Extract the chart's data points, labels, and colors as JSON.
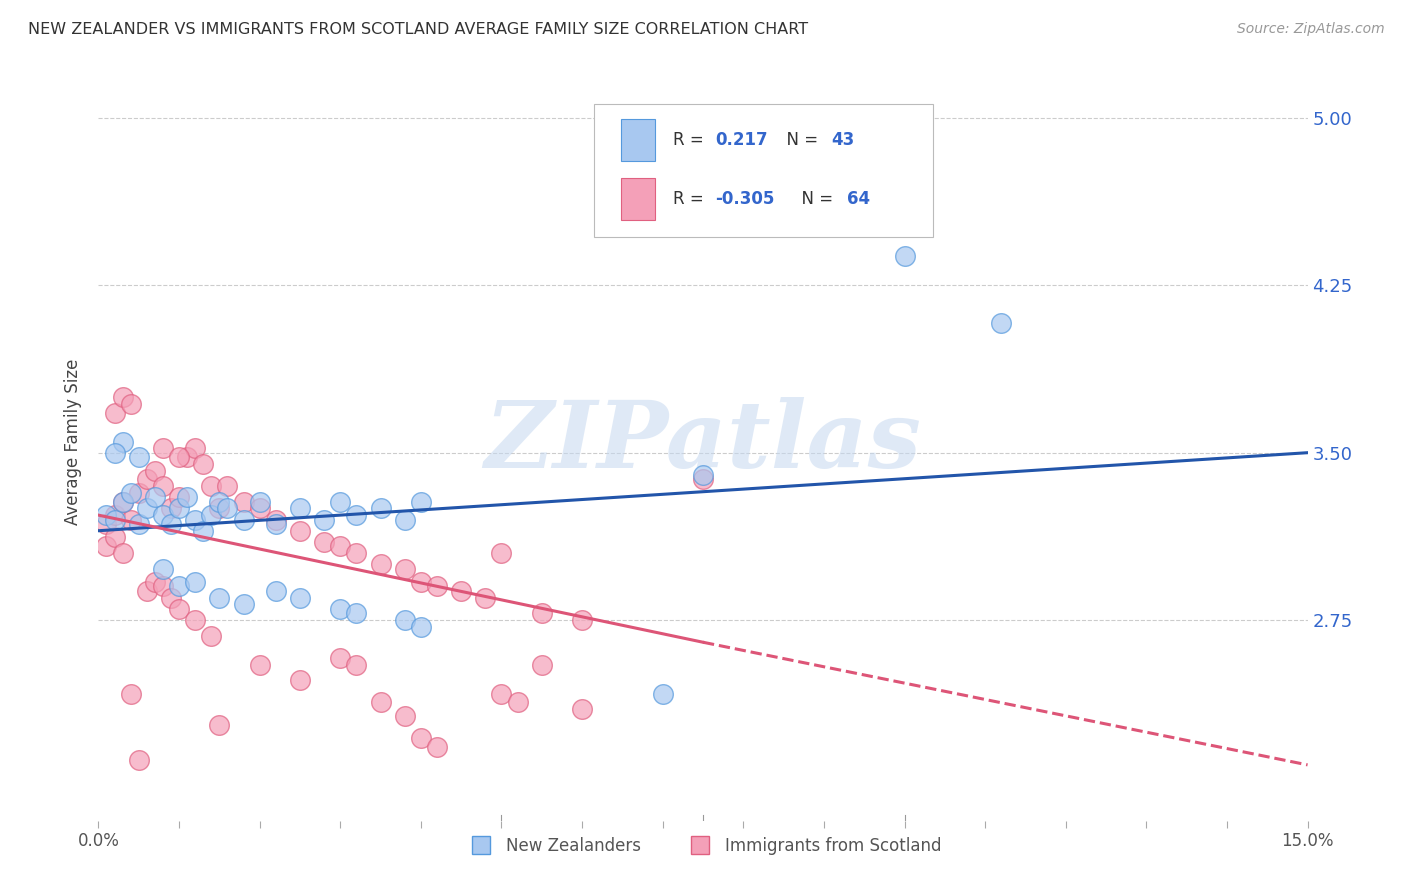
{
  "title": "NEW ZEALANDER VS IMMIGRANTS FROM SCOTLAND AVERAGE FAMILY SIZE CORRELATION CHART",
  "source": "Source: ZipAtlas.com",
  "ylabel": "Average Family Size",
  "yticks": [
    2.75,
    3.5,
    4.25,
    5.0
  ],
  "xlim": [
    0.0,
    0.15
  ],
  "ylim": [
    1.85,
    5.25
  ],
  "legend_label_blue": "New Zealanders",
  "legend_label_pink": "Immigrants from Scotland",
  "blue_color": "#A8C8F0",
  "pink_color": "#F4A0B8",
  "blue_edge_color": "#5599DD",
  "pink_edge_color": "#E06080",
  "blue_line_color": "#2255AA",
  "pink_line_color": "#DD5577",
  "watermark_text": "ZIPatlas",
  "blue_scatter": [
    [
      0.001,
      3.22
    ],
    [
      0.002,
      3.2
    ],
    [
      0.003,
      3.28
    ],
    [
      0.004,
      3.32
    ],
    [
      0.005,
      3.18
    ],
    [
      0.006,
      3.25
    ],
    [
      0.007,
      3.3
    ],
    [
      0.008,
      3.22
    ],
    [
      0.009,
      3.18
    ],
    [
      0.01,
      3.25
    ],
    [
      0.011,
      3.3
    ],
    [
      0.012,
      3.2
    ],
    [
      0.013,
      3.15
    ],
    [
      0.014,
      3.22
    ],
    [
      0.015,
      3.28
    ],
    [
      0.016,
      3.25
    ],
    [
      0.018,
      3.2
    ],
    [
      0.02,
      3.28
    ],
    [
      0.022,
      3.18
    ],
    [
      0.025,
      3.25
    ],
    [
      0.028,
      3.2
    ],
    [
      0.03,
      3.28
    ],
    [
      0.032,
      3.22
    ],
    [
      0.035,
      3.25
    ],
    [
      0.038,
      3.2
    ],
    [
      0.04,
      3.28
    ],
    [
      0.003,
      3.55
    ],
    [
      0.005,
      3.48
    ],
    [
      0.008,
      2.98
    ],
    [
      0.01,
      2.9
    ],
    [
      0.012,
      2.92
    ],
    [
      0.015,
      2.85
    ],
    [
      0.018,
      2.82
    ],
    [
      0.022,
      2.88
    ],
    [
      0.025,
      2.85
    ],
    [
      0.03,
      2.8
    ],
    [
      0.032,
      2.78
    ],
    [
      0.038,
      2.75
    ],
    [
      0.04,
      2.72
    ],
    [
      0.1,
      4.38
    ],
    [
      0.112,
      4.08
    ],
    [
      0.07,
      2.42
    ],
    [
      0.075,
      3.4
    ],
    [
      0.002,
      3.5
    ]
  ],
  "pink_scatter": [
    [
      0.001,
      3.18
    ],
    [
      0.002,
      3.22
    ],
    [
      0.003,
      3.28
    ],
    [
      0.004,
      3.2
    ],
    [
      0.005,
      3.32
    ],
    [
      0.006,
      3.38
    ],
    [
      0.007,
      3.42
    ],
    [
      0.008,
      3.35
    ],
    [
      0.009,
      3.25
    ],
    [
      0.01,
      3.3
    ],
    [
      0.011,
      3.48
    ],
    [
      0.012,
      3.52
    ],
    [
      0.013,
      3.45
    ],
    [
      0.014,
      3.35
    ],
    [
      0.015,
      3.25
    ],
    [
      0.002,
      3.68
    ],
    [
      0.003,
      3.75
    ],
    [
      0.004,
      3.72
    ],
    [
      0.016,
      3.35
    ],
    [
      0.018,
      3.28
    ],
    [
      0.02,
      3.25
    ],
    [
      0.022,
      3.2
    ],
    [
      0.025,
      3.15
    ],
    [
      0.028,
      3.1
    ],
    [
      0.03,
      3.08
    ],
    [
      0.032,
      3.05
    ],
    [
      0.035,
      3.0
    ],
    [
      0.038,
      2.98
    ],
    [
      0.04,
      2.92
    ],
    [
      0.042,
      2.9
    ],
    [
      0.045,
      2.88
    ],
    [
      0.048,
      2.85
    ],
    [
      0.05,
      3.05
    ],
    [
      0.055,
      2.78
    ],
    [
      0.06,
      2.75
    ],
    [
      0.001,
      3.08
    ],
    [
      0.002,
      3.12
    ],
    [
      0.003,
      3.05
    ],
    [
      0.006,
      2.88
    ],
    [
      0.007,
      2.92
    ],
    [
      0.008,
      2.9
    ],
    [
      0.009,
      2.85
    ],
    [
      0.01,
      2.8
    ],
    [
      0.012,
      2.75
    ],
    [
      0.014,
      2.68
    ],
    [
      0.02,
      2.55
    ],
    [
      0.025,
      2.48
    ],
    [
      0.035,
      2.38
    ],
    [
      0.038,
      2.32
    ],
    [
      0.04,
      2.22
    ],
    [
      0.042,
      2.18
    ],
    [
      0.05,
      2.42
    ],
    [
      0.052,
      2.38
    ],
    [
      0.06,
      2.35
    ],
    [
      0.03,
      2.58
    ],
    [
      0.032,
      2.55
    ],
    [
      0.015,
      2.28
    ],
    [
      0.005,
      2.12
    ],
    [
      0.008,
      3.52
    ],
    [
      0.01,
      3.48
    ],
    [
      0.075,
      3.38
    ],
    [
      0.055,
      2.55
    ],
    [
      0.004,
      2.42
    ]
  ],
  "blue_line": {
    "x0": 0.0,
    "y0": 3.15,
    "x1": 0.15,
    "y1": 3.5
  },
  "pink_line_solid_x0": 0.0,
  "pink_line_solid_y0": 3.22,
  "pink_line_solid_x1": 0.075,
  "pink_line_solid_y1": 2.65,
  "pink_line_dashed_x0": 0.075,
  "pink_line_dashed_y0": 2.65,
  "pink_line_dashed_x1": 0.15,
  "pink_line_dashed_y1": 2.1
}
